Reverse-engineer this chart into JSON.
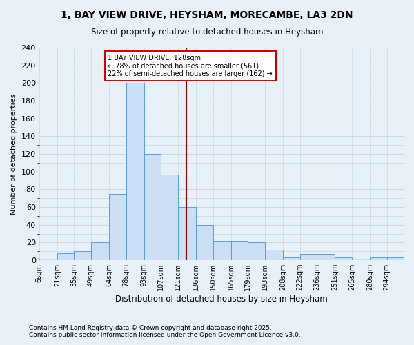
{
  "title_line1": "1, BAY VIEW DRIVE, HEYSHAM, MORECAMBE, LA3 2DN",
  "title_line2": "Size of property relative to detached houses in Heysham",
  "xlabel": "Distribution of detached houses by size in Heysham",
  "ylabel": "Number of detached properties",
  "footnote": "Contains HM Land Registry data © Crown copyright and database right 2025.\nContains public sector information licensed under the Open Government Licence v3.0.",
  "bin_edges": [
    6,
    21,
    35,
    49,
    64,
    78,
    93,
    107,
    121,
    136,
    150,
    165,
    179,
    193,
    208,
    222,
    236,
    251,
    265,
    280,
    294
  ],
  "counts": [
    2,
    8,
    10,
    20,
    75,
    200,
    120,
    97,
    60,
    40,
    22,
    22,
    20,
    12,
    3,
    7,
    7,
    3,
    2,
    3,
    3
  ],
  "property_size": 128,
  "bar_facecolor": "#cce0f5",
  "bar_edgecolor": "#5b9bd5",
  "vline_color": "#8b0000",
  "annotation_box_edgecolor": "#cc0000",
  "annotation_text": "1 BAY VIEW DRIVE: 128sqm\n← 78% of detached houses are smaller (561)\n22% of semi-detached houses are larger (162) →",
  "ylim": [
    0,
    240
  ],
  "yticks": [
    0,
    20,
    40,
    60,
    80,
    100,
    120,
    140,
    160,
    180,
    200,
    220,
    240
  ],
  "background_color": "#e8f0f8",
  "grid_color": "#c8d8e8"
}
